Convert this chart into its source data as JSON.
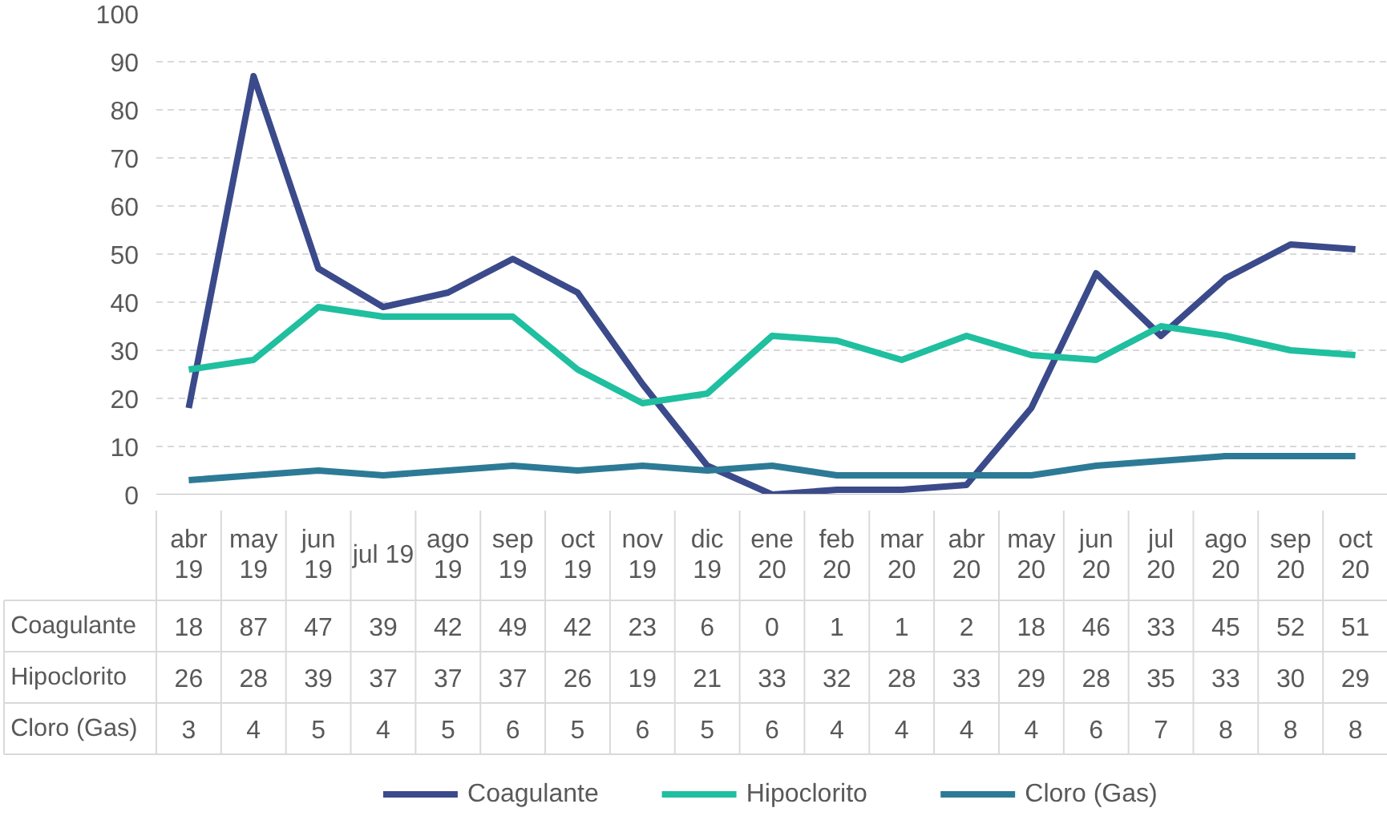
{
  "chart_data": {
    "type": "line",
    "categories": [
      "abr\n19",
      "may\n19",
      "jun\n19",
      "jul 19",
      "ago\n19",
      "sep\n19",
      "oct\n19",
      "nov\n19",
      "dic\n19",
      "ene\n20",
      "feb\n20",
      "mar\n20",
      "abr\n20",
      "may\n20",
      "jun\n20",
      "jul\n20",
      "ago\n20",
      "sep\n20",
      "oct\n20"
    ],
    "series": [
      {
        "name": "Coagulante",
        "color": "#3b4a8a",
        "values": [
          18,
          87,
          47,
          39,
          42,
          49,
          42,
          23,
          6,
          0,
          1,
          1,
          2,
          18,
          46,
          33,
          45,
          52,
          51
        ]
      },
      {
        "name": "Hipoclorito",
        "color": "#1fbf9f",
        "values": [
          26,
          28,
          39,
          37,
          37,
          37,
          26,
          19,
          21,
          33,
          32,
          28,
          33,
          29,
          28,
          35,
          33,
          30,
          29
        ]
      },
      {
        "name": "Cloro (Gas)",
        "color": "#2d7a96",
        "values": [
          3,
          4,
          5,
          4,
          5,
          6,
          5,
          6,
          5,
          6,
          4,
          4,
          4,
          4,
          6,
          7,
          8,
          8,
          8
        ]
      }
    ],
    "ylim": [
      0,
      100
    ],
    "yticks": [
      0,
      10,
      20,
      30,
      40,
      50,
      60,
      70,
      80,
      90,
      100
    ],
    "grid": "y",
    "legend": "bottom",
    "data_labels": true,
    "marker": "none",
    "line_style": "solid"
  }
}
